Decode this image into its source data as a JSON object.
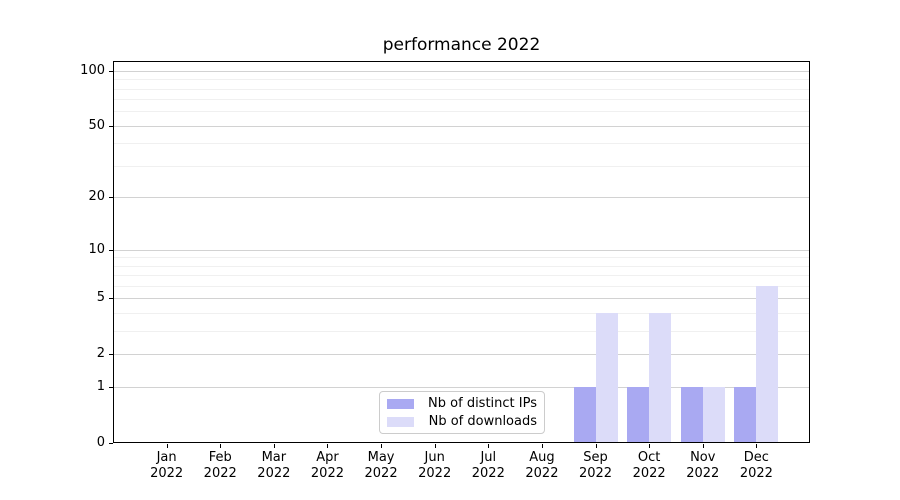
{
  "chart_data": {
    "type": "bar",
    "title": "performance 2022",
    "categories": [
      "Jan 2022",
      "Feb 2022",
      "Mar 2022",
      "Apr 2022",
      "May 2022",
      "Jun 2022",
      "Jul 2022",
      "Aug 2022",
      "Sep 2022",
      "Oct 2022",
      "Nov 2022",
      "Dec 2022"
    ],
    "series": [
      {
        "name": "Nb of distinct IPs",
        "color": "#a9a9f2",
        "values": [
          0,
          0,
          0,
          0,
          0,
          0,
          0,
          0,
          1,
          1,
          1,
          1
        ]
      },
      {
        "name": "Nb of downloads",
        "color": "#dcdcf9",
        "values": [
          0,
          0,
          0,
          0,
          0,
          0,
          0,
          0,
          4,
          4,
          1,
          6
        ]
      }
    ],
    "xlabel": "",
    "ylabel": "",
    "y_scale": "log1p",
    "ylim": [
      0,
      112
    ],
    "y_ticks": [
      100,
      50,
      20,
      10,
      5,
      2,
      1,
      0
    ],
    "y_major_gridlines": [
      1,
      2,
      5,
      10,
      20,
      50,
      100
    ],
    "y_minor_gridlines": [
      3,
      4,
      6,
      7,
      8,
      9,
      30,
      40,
      60,
      70,
      80,
      90
    ],
    "grid": true,
    "legend_position": "lower center"
  },
  "colors": {
    "major_grid": "#d2d2d2",
    "minor_grid": "#f0f0f0",
    "axis": "#000000",
    "legend_border": "#cccccc",
    "text": "#000000"
  }
}
